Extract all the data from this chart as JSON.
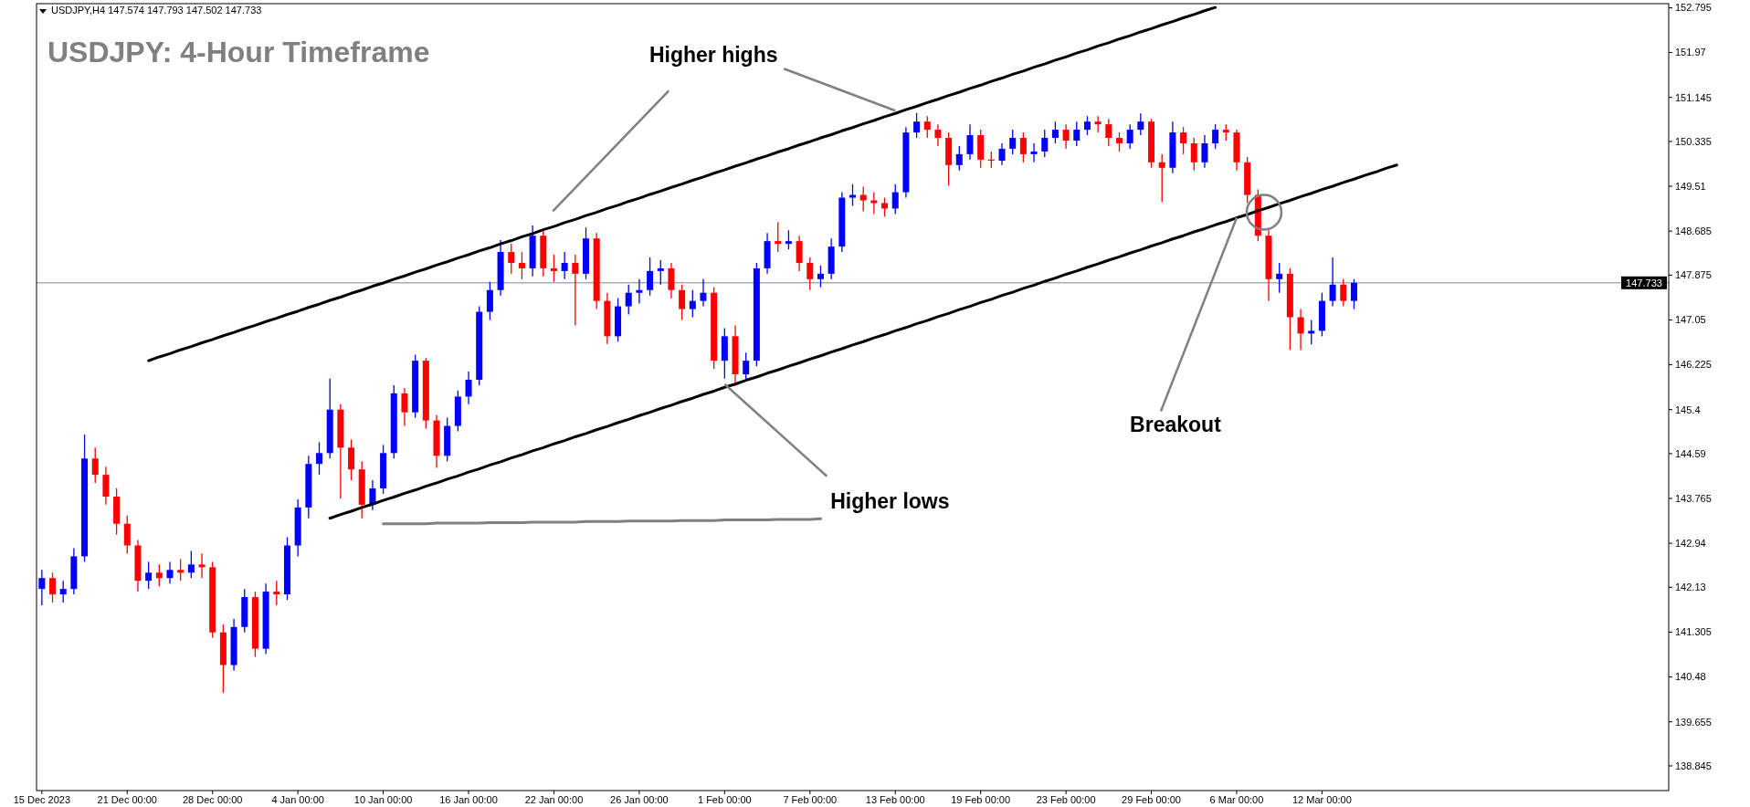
{
  "chart_data": {
    "type": "candlestick",
    "title": "USDJPY: 4-Hour Timeframe",
    "subtitle": "USDJPY,H4  147.574 147.793 147.502 147.733",
    "colors": [
      "#0000ff",
      "#ff0000"
    ],
    "categories": [
      "15 Dec 2023",
      null,
      null,
      null,
      null,
      null,
      null,
      null,
      "21 Dec 00:00",
      null,
      null,
      null,
      null,
      null,
      null,
      null,
      "28 Dec 00:00",
      null,
      null,
      null,
      null,
      null,
      null,
      null,
      "4 Jan 00:00",
      null,
      null,
      null,
      null,
      null,
      null,
      null,
      "10 Jan 00:00",
      null,
      null,
      null,
      null,
      null,
      null,
      null,
      "16 Jan 00:00",
      null,
      null,
      null,
      null,
      null,
      null,
      null,
      "22 Jan 00:00",
      null,
      null,
      null,
      null,
      null,
      null,
      null,
      "26 Jan 00:00",
      null,
      null,
      null,
      null,
      null,
      null,
      null,
      "1 Feb 00:00",
      null,
      null,
      null,
      null,
      null,
      null,
      null,
      "7 Feb 00:00",
      null,
      null,
      null,
      null,
      null,
      null,
      null,
      "13 Feb 00:00",
      null,
      null,
      null,
      null,
      null,
      null,
      null,
      "19 Feb 00:00",
      null,
      null,
      null,
      null,
      null,
      null,
      null,
      "23 Feb 00:00",
      null,
      null,
      null,
      null,
      null,
      null,
      null,
      "29 Feb 00:00",
      null,
      null,
      null,
      null,
      null,
      null,
      null,
      "6 Mar 00:00",
      null,
      null,
      null,
      null,
      null,
      null,
      null,
      "12 Mar 00:00",
      null,
      null,
      null,
      null,
      null,
      null,
      null,
      null,
      null,
      null,
      null,
      null,
      null,
      null,
      null,
      null,
      null,
      null,
      null,
      null,
      null,
      null,
      null,
      null,
      null,
      null,
      null,
      null,
      null,
      null,
      null,
      null
    ],
    "ylim": [
      138.39,
      152.87
    ],
    "yticks": [
      152.795,
      151.97,
      151.145,
      150.335,
      149.51,
      148.685,
      147.875,
      147.05,
      146.225,
      145.4,
      144.59,
      143.765,
      142.94,
      142.13,
      141.305,
      140.48,
      139.655,
      138.845
    ],
    "ref_lines": [
      {
        "axis": "y",
        "value": 147.733,
        "label": "147.733",
        "color": "#778899"
      }
    ],
    "series": [
      {
        "ohlc": [
          [
            142.1,
            142.45,
            141.8,
            142.3
          ],
          [
            142.3,
            142.4,
            141.85,
            142.0
          ],
          [
            142.0,
            142.25,
            141.85,
            142.1
          ],
          [
            142.1,
            142.85,
            142.0,
            142.7
          ],
          [
            142.7,
            144.94,
            142.6,
            144.5
          ],
          [
            144.5,
            144.7,
            144.05,
            144.2
          ],
          [
            144.2,
            144.35,
            143.65,
            143.8
          ],
          [
            143.8,
            143.95,
            143.1,
            143.3
          ],
          [
            143.3,
            143.45,
            142.75,
            142.9
          ],
          [
            142.9,
            143.0,
            142.05,
            142.25
          ],
          [
            142.25,
            142.6,
            142.1,
            142.4
          ],
          [
            142.4,
            142.55,
            142.15,
            142.3
          ],
          [
            142.3,
            142.6,
            142.2,
            142.45
          ],
          [
            142.45,
            142.65,
            142.25,
            142.4
          ],
          [
            142.4,
            142.8,
            142.3,
            142.55
          ],
          [
            142.55,
            142.75,
            142.3,
            142.5
          ],
          [
            142.5,
            142.6,
            141.2,
            141.3
          ],
          [
            141.3,
            141.45,
            140.19,
            140.7
          ],
          [
            140.7,
            141.55,
            140.6,
            141.4
          ],
          [
            141.4,
            142.1,
            141.3,
            141.95
          ],
          [
            141.95,
            142.05,
            140.85,
            141.0
          ],
          [
            141.0,
            142.2,
            140.9,
            142.05
          ],
          [
            142.05,
            142.25,
            141.8,
            142.0
          ],
          [
            142.0,
            143.05,
            141.9,
            142.9
          ],
          [
            142.9,
            143.75,
            142.7,
            143.6
          ],
          [
            143.6,
            144.55,
            143.4,
            144.4
          ],
          [
            144.4,
            144.8,
            144.2,
            144.6
          ],
          [
            144.6,
            145.97,
            144.5,
            145.4
          ],
          [
            145.4,
            145.5,
            143.76,
            144.7
          ],
          [
            144.7,
            144.85,
            144.1,
            144.3
          ],
          [
            144.3,
            144.45,
            143.4,
            143.65
          ],
          [
            143.65,
            144.1,
            143.55,
            143.95
          ],
          [
            143.95,
            144.75,
            143.85,
            144.6
          ],
          [
            144.6,
            145.85,
            144.5,
            145.7
          ],
          [
            145.7,
            145.8,
            145.1,
            145.35
          ],
          [
            145.35,
            146.41,
            145.25,
            146.3
          ],
          [
            146.3,
            146.35,
            145.05,
            145.2
          ],
          [
            145.2,
            145.3,
            144.33,
            144.55
          ],
          [
            144.55,
            145.25,
            144.45,
            145.1
          ],
          [
            145.1,
            145.75,
            145.0,
            145.64
          ],
          [
            145.64,
            146.1,
            145.5,
            145.95
          ],
          [
            145.95,
            147.3,
            145.85,
            147.2
          ],
          [
            147.2,
            147.75,
            147.05,
            147.6
          ],
          [
            147.6,
            148.52,
            147.5,
            148.3
          ],
          [
            148.3,
            148.45,
            147.9,
            148.1
          ],
          [
            148.1,
            148.3,
            147.8,
            148.0
          ],
          [
            148.0,
            148.79,
            147.85,
            148.6
          ],
          [
            148.6,
            148.7,
            147.85,
            148.0
          ],
          [
            148.0,
            148.25,
            147.75,
            147.95
          ],
          [
            147.95,
            148.3,
            147.8,
            148.1
          ],
          [
            148.1,
            148.25,
            146.95,
            147.9
          ],
          [
            147.9,
            148.75,
            147.8,
            148.55
          ],
          [
            148.55,
            148.65,
            147.25,
            147.4
          ],
          [
            147.4,
            147.55,
            146.61,
            146.75
          ],
          [
            146.75,
            147.45,
            146.65,
            147.3
          ],
          [
            147.3,
            147.7,
            147.15,
            147.55
          ],
          [
            147.55,
            147.8,
            147.35,
            147.6
          ],
          [
            147.6,
            148.2,
            147.5,
            147.95
          ],
          [
            147.95,
            148.15,
            147.7,
            148.0
          ],
          [
            148.0,
            148.1,
            147.45,
            147.6
          ],
          [
            147.6,
            147.7,
            147.05,
            147.25
          ],
          [
            147.25,
            147.6,
            147.1,
            147.4
          ],
          [
            147.4,
            147.8,
            147.3,
            147.55
          ],
          [
            147.55,
            147.65,
            146.15,
            146.3
          ],
          [
            146.3,
            146.9,
            145.97,
            146.75
          ],
          [
            146.75,
            146.95,
            145.84,
            146.05
          ],
          [
            146.05,
            146.45,
            145.95,
            146.3
          ],
          [
            146.3,
            148.1,
            146.2,
            148.0
          ],
          [
            148.0,
            148.65,
            147.9,
            148.5
          ],
          [
            148.5,
            148.85,
            148.3,
            148.45
          ],
          [
            148.45,
            148.7,
            148.35,
            148.5
          ],
          [
            148.5,
            148.6,
            147.95,
            148.1
          ],
          [
            148.1,
            148.2,
            147.6,
            147.8
          ],
          [
            147.8,
            148.05,
            147.65,
            147.9
          ],
          [
            147.9,
            148.55,
            147.8,
            148.4
          ],
          [
            148.4,
            149.4,
            148.3,
            149.3
          ],
          [
            149.3,
            149.55,
            149.15,
            149.35
          ],
          [
            149.35,
            149.5,
            149.05,
            149.25
          ],
          [
            149.25,
            149.4,
            149.0,
            149.2
          ],
          [
            149.2,
            149.3,
            148.95,
            149.1
          ],
          [
            149.1,
            149.55,
            149.0,
            149.4
          ],
          [
            149.4,
            150.6,
            149.3,
            150.5
          ],
          [
            150.5,
            150.86,
            150.4,
            150.7
          ],
          [
            150.7,
            150.8,
            150.4,
            150.55
          ],
          [
            150.55,
            150.65,
            150.25,
            150.4
          ],
          [
            150.4,
            150.5,
            149.52,
            149.9
          ],
          [
            149.9,
            150.25,
            149.8,
            150.1
          ],
          [
            150.1,
            150.65,
            150.0,
            150.45
          ],
          [
            150.45,
            150.55,
            149.85,
            150.0
          ],
          [
            150.0,
            150.15,
            149.85,
            149.98
          ],
          [
            149.98,
            150.3,
            149.9,
            150.2
          ],
          [
            150.2,
            150.55,
            150.1,
            150.4
          ],
          [
            150.4,
            150.5,
            149.95,
            150.1
          ],
          [
            150.1,
            150.3,
            149.95,
            150.15
          ],
          [
            150.15,
            150.55,
            150.05,
            150.4
          ],
          [
            150.4,
            150.7,
            150.3,
            150.55
          ],
          [
            150.55,
            150.65,
            150.2,
            150.35
          ],
          [
            150.35,
            150.7,
            150.25,
            150.55
          ],
          [
            150.55,
            150.8,
            150.45,
            150.7
          ],
          [
            150.7,
            150.8,
            150.5,
            150.65
          ],
          [
            150.65,
            150.75,
            150.25,
            150.4
          ],
          [
            150.4,
            150.5,
            150.15,
            150.3
          ],
          [
            150.3,
            150.65,
            150.2,
            150.55
          ],
          [
            150.55,
            150.85,
            150.45,
            150.7
          ],
          [
            150.7,
            150.75,
            149.85,
            149.95
          ],
          [
            149.95,
            150.1,
            149.22,
            149.85
          ],
          [
            149.85,
            150.7,
            149.75,
            150.5
          ],
          [
            150.5,
            150.6,
            150.1,
            150.3
          ],
          [
            150.3,
            150.4,
            149.8,
            149.95
          ],
          [
            149.95,
            150.45,
            149.85,
            150.3
          ],
          [
            150.3,
            150.65,
            150.2,
            150.55
          ],
          [
            150.55,
            150.65,
            150.35,
            150.5
          ],
          [
            150.5,
            150.55,
            149.8,
            149.95
          ],
          [
            149.95,
            150.05,
            149.2,
            149.35
          ],
          [
            149.35,
            149.45,
            148.5,
            148.6
          ],
          [
            148.6,
            148.7,
            147.4,
            147.8
          ],
          [
            147.8,
            148.1,
            147.55,
            147.9
          ],
          [
            147.9,
            148.0,
            146.5,
            147.1
          ],
          [
            147.1,
            147.25,
            146.5,
            146.8
          ],
          [
            146.8,
            147.05,
            146.6,
            146.85
          ],
          [
            146.85,
            147.55,
            146.75,
            147.4
          ],
          [
            147.4,
            148.2,
            147.3,
            147.7
          ],
          [
            147.7,
            147.8,
            147.3,
            147.4
          ],
          [
            147.4,
            147.8,
            147.25,
            147.733
          ],
          null,
          null,
          null,
          null,
          null,
          null,
          null,
          null,
          null,
          null,
          null,
          null,
          null,
          null,
          null,
          null,
          null,
          null,
          null,
          null,
          null,
          null,
          null,
          null,
          null,
          null,
          null,
          null,
          null
        ]
      },
      {
        "type": "line",
        "color": "#000000",
        "values": [
          null,
          null,
          null,
          null,
          null,
          null,
          null,
          null,
          null,
          null,
          146.3,
          146.37,
          146.43,
          146.5,
          146.56,
          146.63,
          146.69,
          146.76,
          146.82,
          146.89,
          146.95,
          147.02,
          147.08,
          147.15,
          147.21,
          147.28,
          147.34,
          147.41,
          147.47,
          147.54,
          147.6,
          147.67,
          147.73,
          147.8,
          147.86,
          147.93,
          147.99,
          148.06,
          148.12,
          148.19,
          148.25,
          148.32,
          148.38,
          148.45,
          148.51,
          148.58,
          148.64,
          148.71,
          148.77,
          148.84,
          148.9,
          148.97,
          149.03,
          149.1,
          149.16,
          149.23,
          149.29,
          149.36,
          149.42,
          149.49,
          149.55,
          149.62,
          149.68,
          149.75,
          149.81,
          149.88,
          149.94,
          150.01,
          150.07,
          150.14,
          150.2,
          150.27,
          150.33,
          150.4,
          150.46,
          150.53,
          150.59,
          150.66,
          150.72,
          150.79,
          150.85,
          150.92,
          150.98,
          151.05,
          151.11,
          151.18,
          151.24,
          151.31,
          151.37,
          151.44,
          151.5,
          151.57,
          151.63,
          151.7,
          151.76,
          151.83,
          151.89,
          151.96,
          152.02,
          152.09,
          152.15,
          152.22,
          152.28,
          152.35,
          152.41,
          152.48,
          152.54,
          152.61,
          152.67,
          152.74,
          152.8,
          null,
          null,
          null,
          null,
          null,
          null,
          null,
          null,
          null,
          null,
          null,
          null,
          null,
          null,
          null,
          null,
          null,
          null,
          null,
          null,
          null,
          null,
          null,
          null,
          null,
          null,
          null,
          null,
          null,
          null,
          null,
          null,
          null,
          null,
          null,
          null,
          null,
          null,
          null,
          null,
          null,
          null
        ]
      },
      {
        "type": "line",
        "color": "#000000",
        "values": [
          null,
          null,
          null,
          null,
          null,
          null,
          null,
          null,
          null,
          null,
          null,
          null,
          null,
          null,
          null,
          null,
          null,
          null,
          null,
          null,
          null,
          null,
          null,
          null,
          null,
          null,
          null,
          143.4,
          143.47,
          143.53,
          143.6,
          143.66,
          143.73,
          143.79,
          143.86,
          143.92,
          143.99,
          144.05,
          144.12,
          144.18,
          144.25,
          144.31,
          144.38,
          144.44,
          144.51,
          144.57,
          144.64,
          144.7,
          144.77,
          144.83,
          144.9,
          144.96,
          145.03,
          145.09,
          145.16,
          145.22,
          145.29,
          145.35,
          145.42,
          145.48,
          145.55,
          145.61,
          145.68,
          145.74,
          145.81,
          145.87,
          145.94,
          146.0,
          146.07,
          146.13,
          146.2,
          146.26,
          146.33,
          146.39,
          146.46,
          146.52,
          146.59,
          146.65,
          146.72,
          146.78,
          146.85,
          146.91,
          146.98,
          147.04,
          147.11,
          147.17,
          147.24,
          147.3,
          147.37,
          147.43,
          147.5,
          147.56,
          147.63,
          147.69,
          147.76,
          147.82,
          147.89,
          147.95,
          148.02,
          148.08,
          148.15,
          148.21,
          148.28,
          148.34,
          148.41,
          148.47,
          148.54,
          148.6,
          148.67,
          148.73,
          148.8,
          148.86,
          148.93,
          148.99,
          149.06,
          149.12,
          149.19,
          149.25,
          149.32,
          149.38,
          149.45,
          149.51,
          149.58,
          149.64,
          149.71,
          149.77,
          149.84,
          149.9,
          null,
          null,
          null,
          null,
          null,
          null,
          null,
          null,
          null,
          null,
          null,
          null,
          null,
          null,
          null,
          null,
          null,
          null,
          null,
          null,
          null,
          null,
          null,
          null,
          null
        ]
      },
      {
        "type": "line",
        "color": "#808080",
        "values": [
          null,
          null,
          null,
          null,
          null,
          null,
          null,
          null,
          null,
          null,
          null,
          null,
          null,
          null,
          null,
          null,
          null,
          null,
          null,
          null,
          null,
          null,
          null,
          null,
          null,
          null,
          null,
          null,
          null,
          null,
          null,
          null,
          143.3,
          143.3,
          143.3,
          143.3,
          143.3,
          143.31,
          143.31,
          143.31,
          143.31,
          143.31,
          143.32,
          143.32,
          143.32,
          143.32,
          143.33,
          143.33,
          143.33,
          143.33,
          143.33,
          143.34,
          143.34,
          143.34,
          143.34,
          143.35,
          143.35,
          143.35,
          143.35,
          143.35,
          143.36,
          143.36,
          143.36,
          143.36,
          143.37,
          143.37,
          143.37,
          143.37,
          143.37,
          143.38,
          143.38,
          143.38,
          143.38,
          143.39,
          null,
          null,
          null,
          null,
          null,
          null,
          null,
          null,
          null,
          null,
          null,
          null,
          null,
          null,
          null,
          null,
          null,
          null,
          null,
          null,
          null,
          null,
          null,
          null,
          null,
          null,
          null,
          null,
          null,
          null,
          null,
          null,
          null,
          null,
          null,
          null,
          null,
          null,
          null,
          null,
          null,
          null,
          null,
          null,
          null,
          null,
          null,
          null,
          null,
          null,
          null,
          null,
          null,
          null,
          null,
          null,
          null,
          null,
          null,
          null,
          null,
          null,
          null,
          null,
          null,
          null,
          null,
          null,
          null,
          null,
          null,
          null,
          null,
          null,
          null,
          null,
          null,
          null,
          null
        ]
      }
    ],
    "annotations": [
      {
        "text": "Higher highs",
        "x": "13 Feb 00:00",
        "y": 150.9
      },
      {
        "text": "Higher lows",
        "x": "1 Feb 00:00",
        "y": 145.87
      },
      {
        "text": "Breakout",
        "x": "6 Mar 00:00",
        "y": 148.93
      }
    ]
  }
}
